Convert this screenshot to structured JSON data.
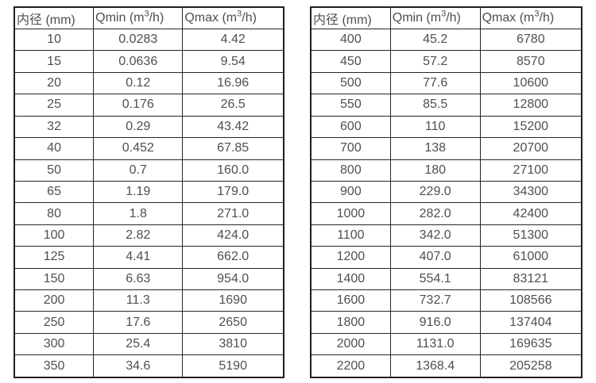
{
  "page": {
    "background": "#ffffff",
    "text_color": "#4f4f4f",
    "border_color": "#262626"
  },
  "chart_data": [
    {
      "type": "table",
      "name": "flow-spec-table-small-diameters",
      "columns": [
        "内径 (mm)",
        "Qmin (m³/h)",
        "Qmax (m³/h)"
      ],
      "rows": [
        [
          "10",
          "0.0283",
          "4.42"
        ],
        [
          "15",
          "0.0636",
          "9.54"
        ],
        [
          "20",
          "0.12",
          "16.96"
        ],
        [
          "25",
          "0.176",
          "26.5"
        ],
        [
          "32",
          "0.29",
          "43.42"
        ],
        [
          "40",
          "0.452",
          "67.85"
        ],
        [
          "50",
          "0.7",
          "160.0"
        ],
        [
          "65",
          "1.19",
          "179.0"
        ],
        [
          "80",
          "1.8",
          "271.0"
        ],
        [
          "100",
          "2.82",
          "424.0"
        ],
        [
          "125",
          "4.41",
          "662.0"
        ],
        [
          "150",
          "6.63",
          "954.0"
        ],
        [
          "200",
          "11.3",
          "1690"
        ],
        [
          "250",
          "17.6",
          "2650"
        ],
        [
          "300",
          "25.4",
          "3810"
        ],
        [
          "350",
          "34.6",
          "5190"
        ]
      ]
    },
    {
      "type": "table",
      "name": "flow-spec-table-large-diameters",
      "columns": [
        "内径 (mm)",
        "Qmin (m³/h)",
        "Qmax (m³/h)"
      ],
      "rows": [
        [
          "400",
          "45.2",
          "6780"
        ],
        [
          "450",
          "57.2",
          "8570"
        ],
        [
          "500",
          "77.6",
          "10600"
        ],
        [
          "550",
          "85.5",
          "12800"
        ],
        [
          "600",
          "110",
          "15200"
        ],
        [
          "700",
          "138",
          "20700"
        ],
        [
          "800",
          "180",
          "27100"
        ],
        [
          "900",
          "229.0",
          "34300"
        ],
        [
          "1000",
          "282.0",
          "42400"
        ],
        [
          "1100",
          "342.0",
          "51300"
        ],
        [
          "1200",
          "407.0",
          "61000"
        ],
        [
          "1400",
          "554.1",
          "83121"
        ],
        [
          "1600",
          "732.7",
          "108566"
        ],
        [
          "1800",
          "916.0",
          "137404"
        ],
        [
          "2000",
          "1131.0",
          "169635"
        ],
        [
          "2200",
          "1368.4",
          "205258"
        ]
      ]
    }
  ]
}
